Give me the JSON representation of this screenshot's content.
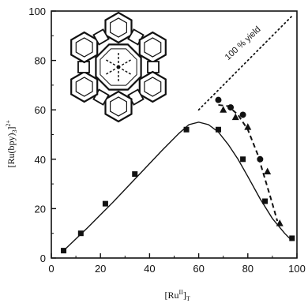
{
  "chart_data": {
    "type": "scatter",
    "xlabel": "[Ru",
    "xlabel_sup": "II",
    "xlabel_sub": "T",
    "ylabel": "[Ru(bpy)",
    "ylabel_sub": "3",
    "ylabel_sup": "2+",
    "ylabel_close": "]",
    "xlim": [
      0,
      100
    ],
    "ylim": [
      0,
      100
    ],
    "x_ticks": [
      "0",
      "20",
      "40",
      "60",
      "80",
      "100"
    ],
    "y_ticks": [
      "0",
      "20",
      "40",
      "60",
      "80",
      "100"
    ],
    "annotation": "100 % yield",
    "grid": false,
    "colors": {
      "ink": "#111111"
    },
    "series": [
      {
        "marker": "square",
        "x": [
          5,
          12,
          22,
          34,
          55,
          68,
          78,
          87,
          98
        ],
        "y": [
          3,
          10,
          22,
          34,
          52,
          52,
          40,
          23,
          8
        ]
      },
      {
        "marker": "circle",
        "x": [
          68,
          73,
          78,
          85
        ],
        "y": [
          64,
          61,
          58,
          40
        ]
      },
      {
        "marker": "triangle",
        "x": [
          70,
          75,
          80,
          88,
          93
        ],
        "y": [
          60,
          57,
          53,
          35,
          14
        ]
      }
    ],
    "fits": [
      {
        "style": "solid",
        "x": [
          5,
          15,
          25,
          35,
          45,
          52,
          56,
          60,
          64,
          68,
          72,
          76,
          80,
          85,
          90,
          95,
          98
        ],
        "y": [
          3,
          12.5,
          22.5,
          33,
          43.5,
          50.5,
          54,
          55,
          54,
          51,
          46,
          40,
          33,
          24,
          16,
          10,
          7
        ]
      },
      {
        "style": "dashed",
        "x": [
          68,
          72,
          76,
          80,
          84,
          87,
          90,
          92
        ],
        "y": [
          62,
          61.5,
          58,
          52,
          42,
          32,
          22,
          15
        ]
      },
      {
        "style": "dotted",
        "x": [
          60,
          98
        ],
        "y": [
          60,
          98
        ]
      }
    ],
    "inset": "zeolite-cage-diagram"
  }
}
